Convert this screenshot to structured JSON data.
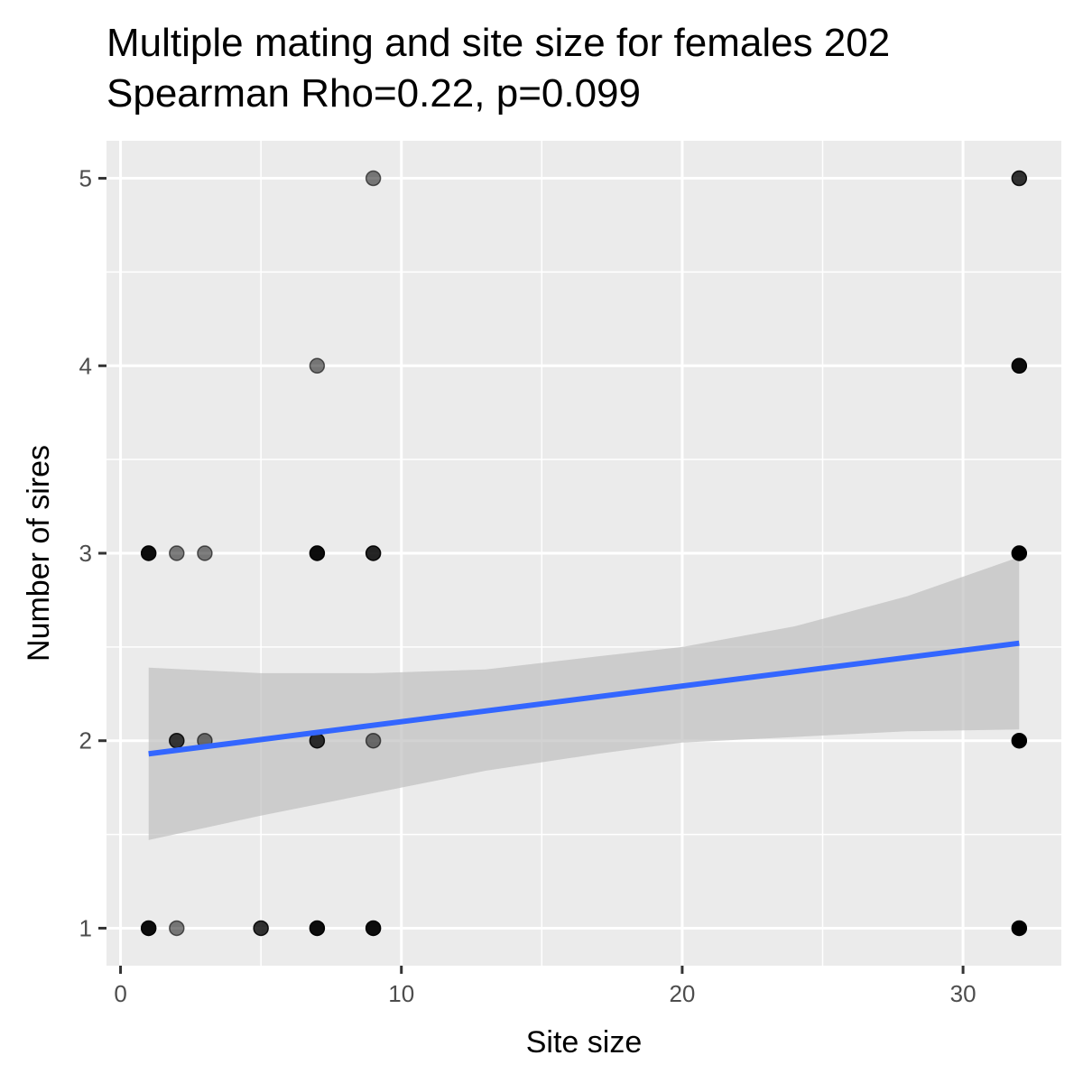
{
  "chart_data": {
    "type": "scatter",
    "title": "Multiple mating and site size for females 202",
    "subtitle": "Spearman Rho=0.22, p=0.099",
    "xlabel": "Site size",
    "ylabel": "Number of sires",
    "xlim": [
      -0.5,
      33.5
    ],
    "ylim": [
      0.8,
      5.2
    ],
    "x_ticks": [
      0,
      10,
      20,
      30
    ],
    "x_minor_ticks": [
      5,
      15,
      25
    ],
    "y_ticks": [
      1,
      2,
      3,
      4,
      5
    ],
    "y_minor_ticks": [
      1.5,
      2.5,
      3.5,
      4.5
    ],
    "grid": true,
    "background_color": "#ebebeb",
    "point_color": "#000000",
    "fit_line_color": "#3366ff",
    "ribbon_color": "#bfbfbf",
    "points": [
      {
        "x": 1,
        "y": 1,
        "opacity": 0.95
      },
      {
        "x": 2,
        "y": 1,
        "opacity": 0.5
      },
      {
        "x": 5,
        "y": 1,
        "opacity": 0.8
      },
      {
        "x": 7,
        "y": 1,
        "opacity": 0.95
      },
      {
        "x": 9,
        "y": 1,
        "opacity": 0.95
      },
      {
        "x": 32,
        "y": 1,
        "opacity": 1.0
      },
      {
        "x": 2,
        "y": 2,
        "opacity": 0.75
      },
      {
        "x": 3,
        "y": 2,
        "opacity": 0.5
      },
      {
        "x": 7,
        "y": 2,
        "opacity": 0.8
      },
      {
        "x": 9,
        "y": 2,
        "opacity": 0.5
      },
      {
        "x": 32,
        "y": 2,
        "opacity": 1.0
      },
      {
        "x": 1,
        "y": 3,
        "opacity": 0.95
      },
      {
        "x": 2,
        "y": 3,
        "opacity": 0.5
      },
      {
        "x": 3,
        "y": 3,
        "opacity": 0.5
      },
      {
        "x": 7,
        "y": 3,
        "opacity": 0.95
      },
      {
        "x": 9,
        "y": 3,
        "opacity": 0.85
      },
      {
        "x": 32,
        "y": 3,
        "opacity": 1.0
      },
      {
        "x": 7,
        "y": 4,
        "opacity": 0.5
      },
      {
        "x": 32,
        "y": 4,
        "opacity": 0.95
      },
      {
        "x": 9,
        "y": 5,
        "opacity": 0.5
      },
      {
        "x": 32,
        "y": 5,
        "opacity": 0.8
      }
    ],
    "fit_line": [
      {
        "x": 1,
        "y": 1.93
      },
      {
        "x": 32,
        "y": 2.52
      }
    ],
    "confidence_band": [
      {
        "x": 1,
        "lower": 1.47,
        "upper": 2.39
      },
      {
        "x": 5,
        "lower": 1.6,
        "upper": 2.36
      },
      {
        "x": 9,
        "lower": 1.72,
        "upper": 2.36
      },
      {
        "x": 13,
        "lower": 1.84,
        "upper": 2.38
      },
      {
        "x": 17,
        "lower": 1.93,
        "upper": 2.45
      },
      {
        "x": 20,
        "lower": 1.99,
        "upper": 2.5
      },
      {
        "x": 24,
        "lower": 2.02,
        "upper": 2.61
      },
      {
        "x": 28,
        "lower": 2.05,
        "upper": 2.77
      },
      {
        "x": 32,
        "lower": 2.06,
        "upper": 2.98
      }
    ]
  }
}
